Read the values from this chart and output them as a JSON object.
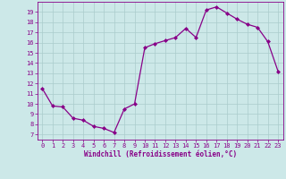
{
  "x": [
    0,
    1,
    2,
    3,
    4,
    5,
    6,
    7,
    8,
    9,
    10,
    11,
    12,
    13,
    14,
    15,
    16,
    17,
    18,
    19,
    20,
    21,
    22,
    23
  ],
  "y": [
    11.5,
    9.8,
    9.7,
    8.6,
    8.4,
    7.8,
    7.6,
    7.2,
    9.5,
    10.0,
    15.5,
    15.9,
    16.2,
    16.5,
    17.4,
    16.5,
    19.2,
    19.5,
    18.9,
    18.3,
    17.8,
    17.5,
    16.1,
    13.2
  ],
  "line_color": "#880088",
  "marker": "D",
  "marker_size": 2.0,
  "bg_color": "#cce8e8",
  "grid_color": "#aacccc",
  "xlabel": "Windchill (Refroidissement éolien,°C)",
  "xlabel_color": "#880088",
  "ylabel_ticks": [
    7,
    8,
    9,
    10,
    11,
    12,
    13,
    14,
    15,
    16,
    17,
    18,
    19
  ],
  "xlim": [
    -0.5,
    23.5
  ],
  "ylim": [
    6.5,
    20.0
  ],
  "xtick_labels": [
    "0",
    "1",
    "2",
    "3",
    "4",
    "5",
    "6",
    "7",
    "8",
    "9",
    "10",
    "11",
    "12",
    "13",
    "14",
    "15",
    "16",
    "17",
    "18",
    "19",
    "20",
    "21",
    "22",
    "23"
  ],
  "tick_fontsize": 5.0,
  "xlabel_fontsize": 5.5,
  "tick_color": "#880088",
  "spine_color": "#880088",
  "linewidth": 0.9
}
